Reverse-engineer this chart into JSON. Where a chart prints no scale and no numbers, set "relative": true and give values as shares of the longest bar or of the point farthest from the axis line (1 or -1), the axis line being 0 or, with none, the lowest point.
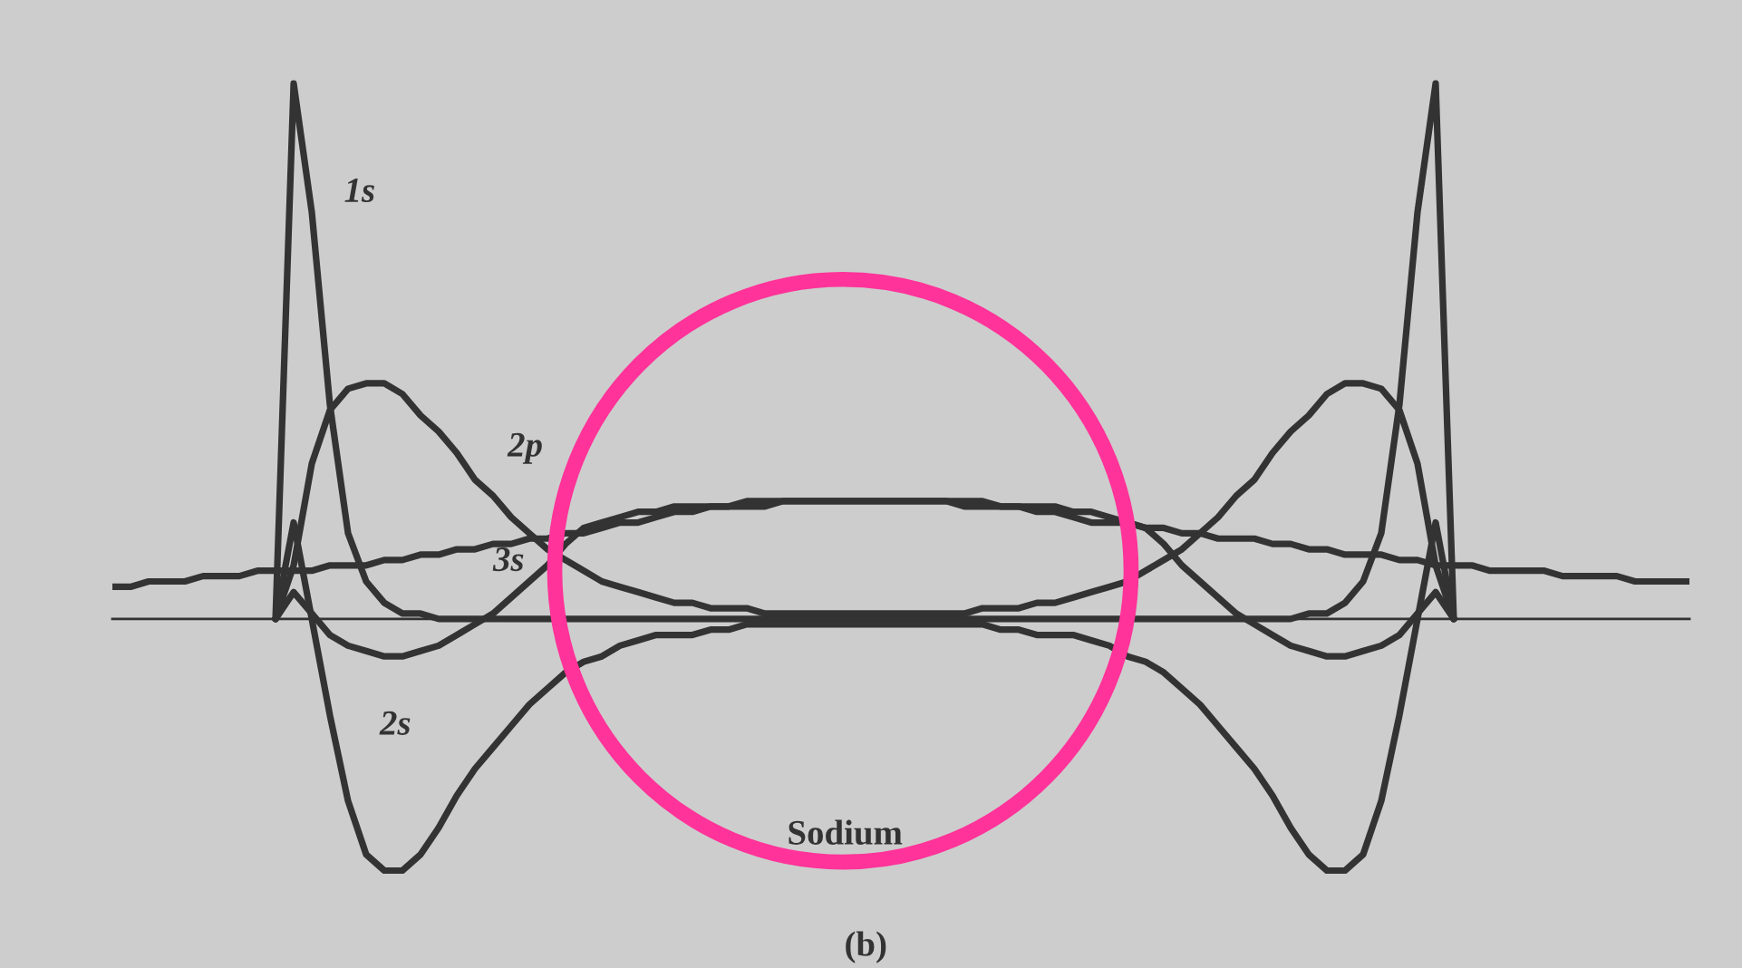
{
  "chart_data": {
    "type": "line",
    "relative": true,
    "categories": [
      null,
      null,
      null,
      null,
      null,
      null,
      null,
      null,
      null,
      null,
      null,
      null,
      null,
      null,
      null,
      null,
      null,
      null,
      null,
      null,
      null,
      null,
      null,
      null,
      null,
      null,
      null,
      null,
      null,
      null,
      null,
      null,
      null,
      null,
      null,
      null,
      null,
      null,
      null,
      null,
      null,
      null,
      null,
      null,
      null,
      null,
      null,
      null,
      null,
      null,
      null,
      null,
      null,
      null,
      null,
      null,
      null,
      null,
      null,
      null,
      null,
      null,
      null,
      null,
      null,
      null,
      null,
      null,
      null,
      null,
      null,
      null,
      null,
      null,
      null,
      null,
      null,
      null,
      null,
      null,
      null,
      null,
      null,
      null,
      null,
      null,
      null,
      null
    ],
    "series": [
      {
        "name": "1s",
        "color": "#333333",
        "values": [
          null,
          null,
          null,
          null,
          null,
          null,
          null,
          null,
          null,
          0,
          1.0,
          0.76,
          0.4,
          0.16,
          0.07,
          0.03,
          0.01,
          0.01,
          0,
          0,
          0,
          0,
          0,
          0,
          0,
          0,
          0,
          0,
          0,
          0,
          0,
          0,
          0,
          0,
          0,
          0,
          0,
          0,
          0,
          0,
          0,
          0,
          0,
          0,
          0,
          0,
          0,
          0,
          0,
          0,
          0,
          0,
          0,
          0,
          0,
          0,
          0,
          0,
          0,
          0,
          0,
          0,
          0,
          0,
          0,
          0,
          0.01,
          0.01,
          0.03,
          0.07,
          0.16,
          0.4,
          0.76,
          1.0,
          0,
          null,
          null,
          null,
          null,
          null,
          null,
          null,
          null,
          null,
          null,
          null,
          null,
          null
        ]
      },
      {
        "name": "2p",
        "color": "#333333",
        "values": [
          null,
          null,
          null,
          null,
          null,
          null,
          null,
          null,
          null,
          0,
          0.1,
          0.29,
          0.39,
          0.43,
          0.44,
          0.44,
          0.42,
          0.38,
          0.35,
          0.31,
          0.26,
          0.23,
          0.19,
          0.16,
          0.13,
          0.11,
          0.09,
          0.07,
          0.06,
          0.05,
          0.04,
          0.03,
          0.03,
          0.02,
          0.02,
          0.02,
          0.01,
          0.01,
          0.01,
          0.01,
          0.01,
          0.01,
          0.01,
          0.01,
          0.01,
          0.01,
          0.01,
          0.01,
          0.02,
          0.02,
          0.02,
          0.03,
          0.03,
          0.04,
          0.05,
          0.06,
          0.07,
          0.09,
          0.11,
          0.13,
          0.16,
          0.19,
          0.23,
          0.26,
          0.31,
          0.35,
          0.38,
          0.42,
          0.44,
          0.44,
          0.43,
          0.39,
          0.29,
          0.1,
          0,
          null,
          null,
          null,
          null,
          null,
          null,
          null,
          null,
          null,
          null,
          null,
          null,
          null
        ]
      },
      {
        "name": "3s",
        "color": "#333333",
        "values": [
          null,
          null,
          null,
          null,
          null,
          null,
          null,
          null,
          null,
          0,
          0.05,
          0.01,
          -0.03,
          -0.05,
          -0.06,
          -0.07,
          -0.07,
          -0.06,
          -0.05,
          -0.03,
          -0.01,
          0.01,
          0.04,
          0.07,
          0.1,
          0.14,
          0.17,
          0.18,
          0.19,
          0.2,
          0.2,
          0.21,
          0.21,
          0.21,
          0.21,
          0.22,
          0.22,
          0.22,
          0.22,
          0.22,
          0.22,
          0.22,
          0.22,
          0.22,
          0.22,
          0.22,
          0.22,
          0.22,
          0.22,
          0.21,
          0.21,
          0.21,
          0.21,
          0.2,
          0.2,
          0.19,
          0.18,
          0.17,
          0.14,
          0.1,
          0.07,
          0.04,
          0.01,
          -0.01,
          -0.03,
          -0.05,
          -0.06,
          -0.07,
          -0.07,
          -0.06,
          -0.05,
          -0.03,
          0.01,
          0.05,
          0,
          null,
          null,
          null,
          null,
          null,
          null,
          null,
          null,
          null,
          null,
          null,
          null,
          null
        ]
      },
      {
        "name": "2s",
        "color": "#333333",
        "values": [
          null,
          null,
          null,
          null,
          null,
          null,
          null,
          null,
          null,
          0,
          0.18,
          0,
          -0.18,
          -0.34,
          -0.44,
          -0.47,
          -0.47,
          -0.44,
          -0.39,
          -0.33,
          -0.28,
          -0.24,
          -0.2,
          -0.16,
          -0.13,
          -0.1,
          -0.08,
          -0.07,
          -0.05,
          -0.04,
          -0.03,
          -0.03,
          -0.03,
          -0.02,
          -0.02,
          -0.01,
          -0.01,
          -0.01,
          -0.01,
          -0.01,
          -0.01,
          -0.01,
          -0.01,
          -0.01,
          -0.01,
          -0.01,
          -0.01,
          -0.01,
          -0.01,
          -0.02,
          -0.02,
          -0.03,
          -0.03,
          -0.03,
          -0.04,
          -0.05,
          -0.07,
          -0.08,
          -0.1,
          -0.13,
          -0.16,
          -0.2,
          -0.24,
          -0.28,
          -0.33,
          -0.39,
          -0.44,
          -0.47,
          -0.47,
          -0.44,
          -0.34,
          -0.18,
          0,
          0.18,
          0,
          null,
          null,
          null,
          null,
          null,
          null,
          null,
          null,
          null,
          null,
          null,
          null,
          null
        ]
      },
      {
        "color": "#333333",
        "values": [
          0.06,
          0.06,
          0.07,
          0.07,
          0.07,
          0.08,
          0.08,
          0.08,
          0.09,
          0.09,
          0.09,
          0.09,
          0.1,
          0.1,
          0.1,
          0.11,
          0.11,
          0.12,
          0.12,
          0.13,
          0.13,
          0.14,
          0.14,
          0.15,
          0.15,
          0.16,
          0.16,
          0.17,
          0.18,
          0.18,
          0.19,
          0.2,
          0.2,
          0.21,
          0.21,
          0.21,
          0.21,
          0.22,
          0.22,
          0.22,
          0.22,
          0.22,
          0.22,
          0.22,
          0.22,
          0.22,
          0.22,
          0.21,
          0.21,
          0.21,
          0.21,
          0.2,
          0.2,
          0.19,
          0.18,
          0.18,
          0.18,
          0.17,
          0.17,
          0.16,
          0.16,
          0.15,
          0.15,
          0.15,
          0.14,
          0.14,
          0.13,
          0.13,
          0.12,
          0.12,
          0.12,
          0.11,
          0.11,
          0.1,
          0.1,
          0.1,
          0.09,
          0.09,
          0.09,
          0.09,
          0.08,
          0.08,
          0.08,
          0.08,
          0.07,
          0.07,
          0.07,
          0.07
        ]
      }
    ],
    "annotations": [
      "Sodium",
      "(b)"
    ],
    "legend": false,
    "grid": false,
    "marker": "none",
    "line_style": "solid"
  }
}
